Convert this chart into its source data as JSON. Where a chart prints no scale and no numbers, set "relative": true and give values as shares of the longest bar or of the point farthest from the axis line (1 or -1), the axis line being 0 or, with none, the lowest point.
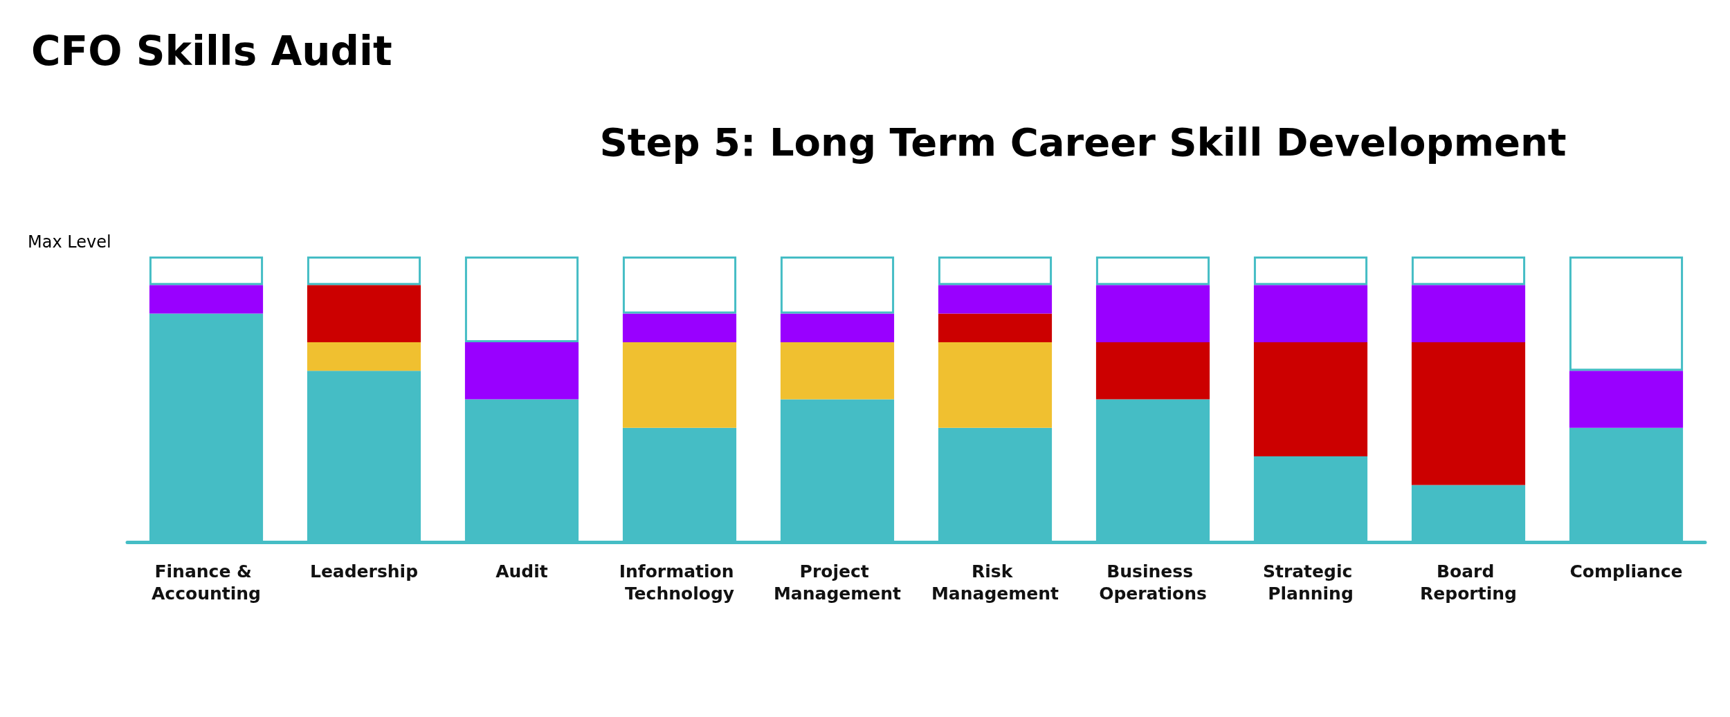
{
  "chart_data": {
    "type": "bar",
    "title": "CFO Skills Audit",
    "subtitle": "Step 5: Long Term Career Skill Development",
    "annotations": [
      "Max Level"
    ],
    "relative": true,
    "stacked": true,
    "categories": [
      "Finance & Accounting",
      "Leadership",
      "Audit",
      "Information Technology",
      "Project Management",
      "Risk Management",
      "Business Operations",
      "Strategic Planning",
      "Board Reporting",
      "Compliance"
    ],
    "series": [
      {
        "color": "#45bdc5",
        "values": [
          0.8,
          0.6,
          0.5,
          0.4,
          0.5,
          0.4,
          0.5,
          0.3,
          0.2,
          0.4
        ]
      },
      {
        "color": "#f0c030",
        "values": [
          null,
          0.1,
          null,
          0.3,
          0.2,
          0.3,
          null,
          null,
          null,
          null
        ]
      },
      {
        "color": "#cc0000",
        "values": [
          null,
          0.2,
          null,
          null,
          null,
          0.1,
          0.2,
          0.4,
          0.5,
          null
        ]
      },
      {
        "color": "#9900ff",
        "values": [
          0.1,
          null,
          0.2,
          0.1,
          0.1,
          0.1,
          0.2,
          0.2,
          0.2,
          0.2
        ]
      },
      {
        "color": "#ffffff",
        "values": [
          0.1,
          0.1,
          0.3,
          0.2,
          0.2,
          0.1,
          0.1,
          0.1,
          0.1,
          0.4
        ]
      }
    ]
  }
}
